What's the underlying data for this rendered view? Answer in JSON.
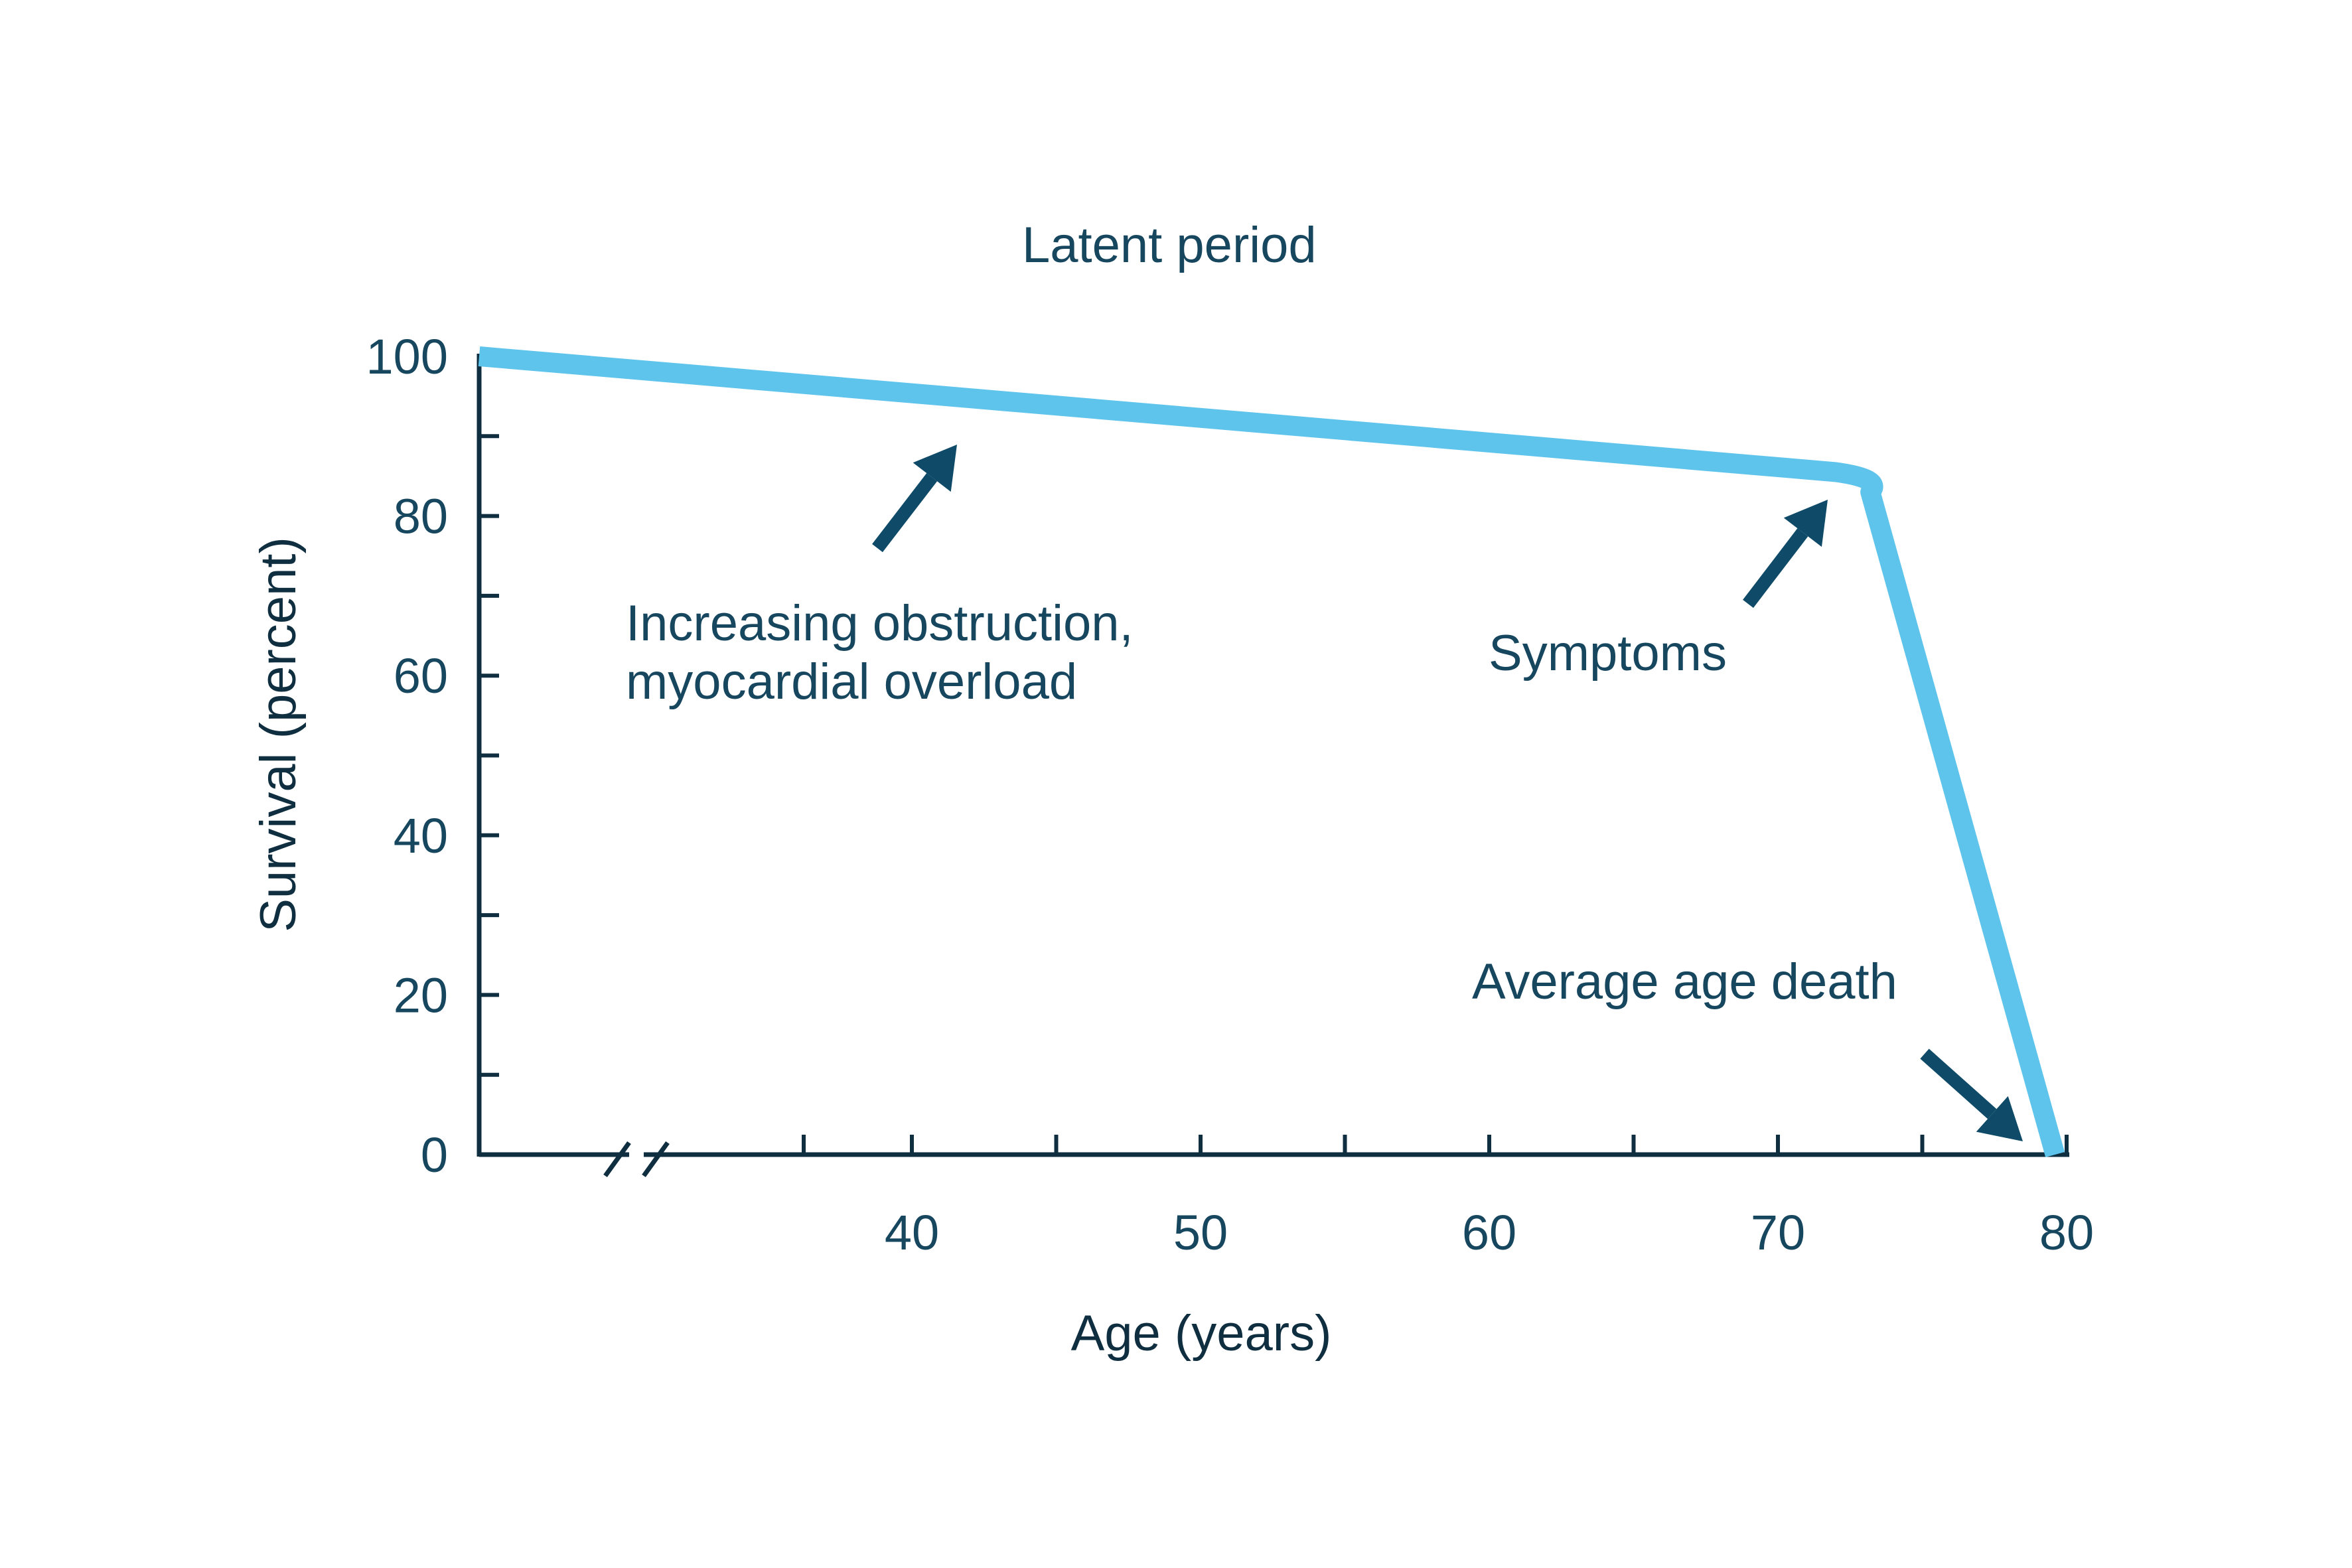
{
  "chart_data": {
    "type": "line",
    "title": "",
    "xlabel": "Age (years)",
    "ylabel": "Survival (percent)",
    "xlim": [
      20,
      80
    ],
    "ylim": [
      0,
      100
    ],
    "x_axis_break": true,
    "x_ticks": [
      40,
      50,
      60,
      70,
      80
    ],
    "y_ticks": [
      0,
      20,
      40,
      60,
      80,
      100
    ],
    "grid": false,
    "series": [
      {
        "x": [
          20,
          72,
          73.2,
          79.6
        ],
        "y": [
          100,
          85.5,
          83,
          0
        ]
      }
    ],
    "annotations": [
      {
        "text": "Latent period"
      },
      {
        "text": "Increasing obstruction,\nmyocardial overload"
      },
      {
        "text": "Symptoms"
      },
      {
        "text": "Average age death"
      }
    ],
    "colors": {
      "line": "#5ec4ec",
      "axis": "#0f2e40",
      "text": "#17465f",
      "arrow": "#0f4b68"
    }
  }
}
